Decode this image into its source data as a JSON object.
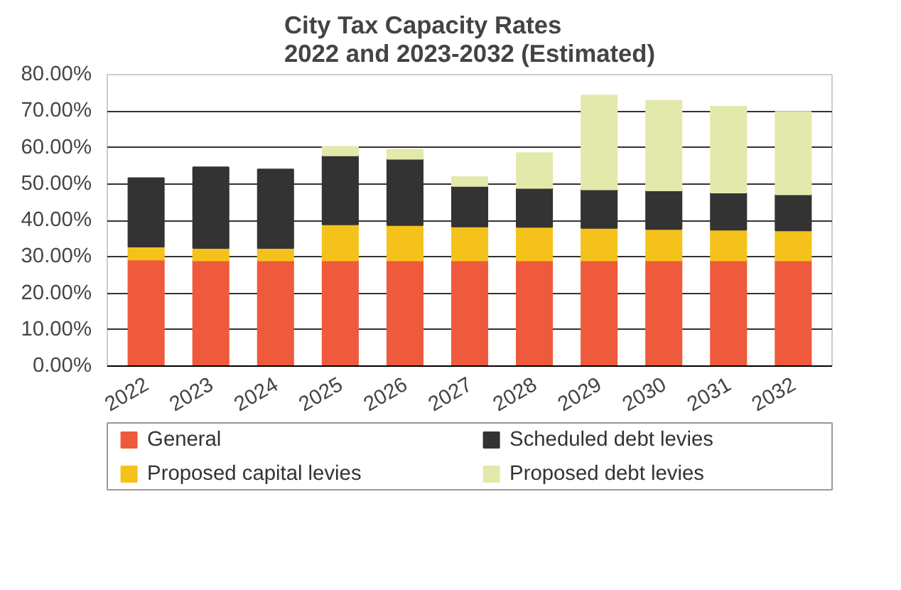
{
  "chart_data": {
    "type": "bar",
    "stacked": true,
    "title": "City Tax Capacity Rates\n2022 and 2023-2032 (Estimated)",
    "categories": [
      "2022",
      "2023",
      "2024",
      "2025",
      "2026",
      "2027",
      "2028",
      "2029",
      "2030",
      "2031",
      "2032"
    ],
    "series": [
      {
        "name": "General",
        "color": "#ef5a3c",
        "values": [
          29.2,
          29.0,
          29.0,
          29.0,
          29.0,
          29.0,
          29.0,
          29.0,
          29.0,
          29.0,
          29.0
        ]
      },
      {
        "name": "Proposed capital levies",
        "color": "#f5c21b",
        "values": [
          3.6,
          3.4,
          3.4,
          9.9,
          9.7,
          9.3,
          9.2,
          8.9,
          8.6,
          8.4,
          8.2
        ]
      },
      {
        "name": "Scheduled debt levies",
        "color": "#333333",
        "values": [
          18.8,
          22.2,
          21.6,
          18.9,
          18.2,
          11.1,
          10.7,
          10.6,
          10.6,
          10.2,
          9.9
        ]
      },
      {
        "name": "Proposed debt levies",
        "color": "#e3e9ab",
        "values": [
          null,
          null,
          null,
          2.4,
          2.5,
          2.5,
          9.6,
          25.8,
          24.7,
          23.6,
          22.7
        ]
      }
    ],
    "ylim": [
      0,
      80
    ],
    "yticks": [
      {
        "value": 0,
        "label": "0.00%"
      },
      {
        "value": 10,
        "label": "10.00%"
      },
      {
        "value": 20,
        "label": "20.00%"
      },
      {
        "value": 30,
        "label": "30.00%"
      },
      {
        "value": 40,
        "label": "40.00%"
      },
      {
        "value": 50,
        "label": "50.00%"
      },
      {
        "value": 60,
        "label": "60.00%"
      },
      {
        "value": 70,
        "label": "70.00%"
      },
      {
        "value": 80,
        "label": "80.00%"
      }
    ],
    "grid": "y",
    "legend": "bottom"
  }
}
